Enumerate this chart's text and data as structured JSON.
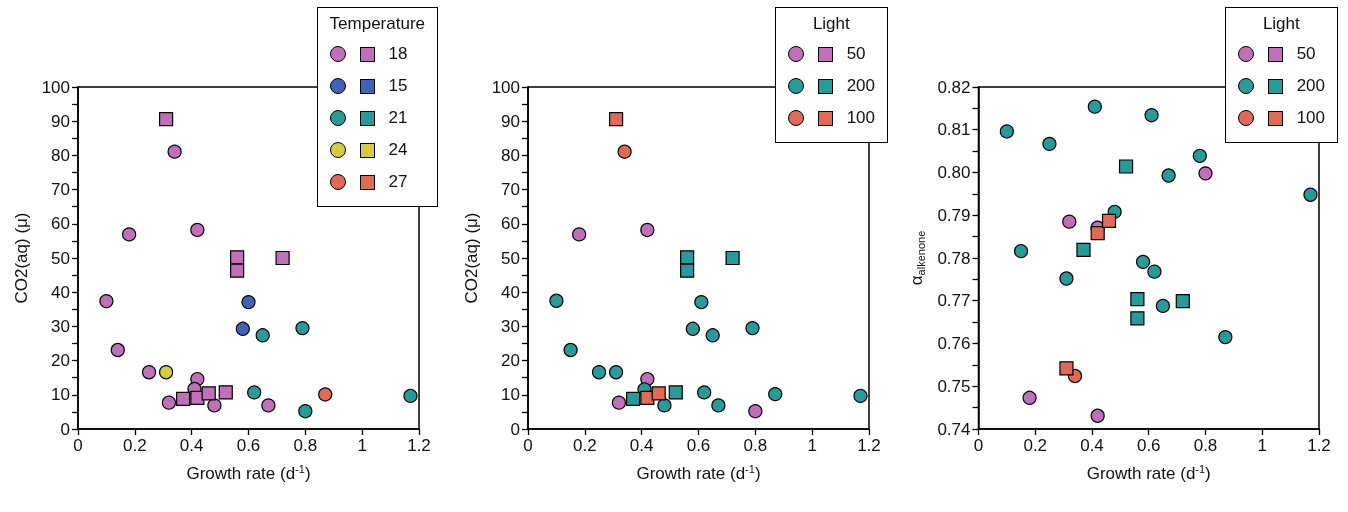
{
  "chart_data": [
    {
      "type": "scatter",
      "xlabel": "Growth rate (d$^{-1}$)",
      "ylabel": "CO2(aq) (μ)",
      "legend_title": "Temperature",
      "legend": "top right",
      "grid": false,
      "xlim": [
        0,
        1.2
      ],
      "xticks": [
        0,
        0.2,
        0.4,
        0.6,
        0.8,
        1,
        1.2
      ],
      "ylim": [
        0,
        100
      ],
      "yticks": [
        0,
        {
          "value": 5,
          "label": null
        },
        10,
        {
          "value": 15,
          "label": null
        },
        20,
        {
          "value": 25,
          "label": null
        },
        30,
        {
          "value": 35,
          "label": null
        },
        40,
        {
          "value": 45,
          "label": null
        },
        50,
        {
          "value": 55,
          "label": null
        },
        60,
        {
          "value": 65,
          "label": null
        },
        70,
        {
          "value": 75,
          "label": null
        },
        80,
        {
          "value": 85,
          "label": null
        },
        90,
        {
          "value": 95,
          "label": null
        },
        100
      ],
      "series": [
        {
          "name": "18",
          "color": "#c070b8",
          "marker": "circle",
          "x": [
            0.1,
            0.14,
            0.18,
            0.25,
            0.34,
            0.42,
            0.42,
            0.41,
            0.32,
            0.48,
            0.67
          ],
          "values": [
            37.4,
            23.1,
            56.9,
            16.6,
            81.1,
            58.2,
            14.6,
            11.7,
            7.7,
            6.9,
            6.9
          ]
        },
        {
          "name": "15",
          "color": "#4262b8",
          "marker": "circle",
          "x": [
            0.6,
            0.58
          ],
          "values": [
            37.1,
            29.3
          ]
        },
        {
          "name": "21",
          "color": "#2a9a98",
          "marker": "circle",
          "x": [
            0.65,
            0.79,
            0.62,
            0.8,
            1.17
          ],
          "values": [
            27.4,
            29.5,
            10.7,
            5.2,
            9.7
          ]
        },
        {
          "name": "24",
          "color": "#d4cc44",
          "marker": "circle",
          "x": [
            0.31
          ],
          "values": [
            16.6
          ]
        },
        {
          "name": "27",
          "color": "#e06a58",
          "marker": "circle",
          "x": [
            0.87
          ],
          "values": [
            10.1
          ]
        },
        {
          "color": "#c070b8",
          "marker": "square",
          "x": [
            0.31,
            0.56,
            0.56,
            0.72,
            0.37,
            0.42,
            0.46,
            0.52
          ],
          "values": [
            90.6,
            50.2,
            46.3,
            50.0,
            8.8,
            9.1,
            10.4,
            10.7
          ]
        }
      ]
    },
    {
      "type": "scatter",
      "xlabel": "Growth rate (d$^{-1}$)",
      "ylabel": "CO2(aq) (μ)",
      "legend_title": "Light",
      "legend": "top right",
      "grid": false,
      "xlim": [
        0,
        1.2
      ],
      "xticks": [
        0,
        0.2,
        0.4,
        0.6,
        0.8,
        1,
        1.2
      ],
      "ylim": [
        0,
        100
      ],
      "yticks": [
        0,
        {
          "value": 5,
          "label": null
        },
        10,
        {
          "value": 15,
          "label": null
        },
        20,
        {
          "value": 25,
          "label": null
        },
        30,
        {
          "value": 35,
          "label": null
        },
        40,
        {
          "value": 45,
          "label": null
        },
        50,
        {
          "value": 55,
          "label": null
        },
        60,
        {
          "value": 65,
          "label": null
        },
        70,
        {
          "value": 75,
          "label": null
        },
        80,
        {
          "value": 85,
          "label": null
        },
        90,
        {
          "value": 95,
          "label": null
        },
        100
      ],
      "series": [
        {
          "name": "50",
          "color": "#c070b8",
          "marker": "circle",
          "x": [
            0.18,
            0.42,
            0.42,
            0.32,
            0.8
          ],
          "values": [
            56.9,
            58.2,
            14.6,
            7.7,
            5.2
          ]
        },
        {
          "name": "200",
          "color": "#2a9a98",
          "marker": "circle",
          "x": [
            0.1,
            0.15,
            0.25,
            0.31,
            0.41,
            0.48,
            0.58,
            0.61,
            0.65,
            0.79,
            0.62,
            0.67,
            0.87,
            1.17
          ],
          "values": [
            37.5,
            23.1,
            16.6,
            16.6,
            11.6,
            6.9,
            29.3,
            37.1,
            27.4,
            29.5,
            10.7,
            6.9,
            10.2,
            9.7
          ]
        },
        {
          "name": "100",
          "color": "#e06a58",
          "marker": "circle",
          "x": [
            0.34
          ],
          "values": [
            81.1
          ]
        },
        {
          "color": "#2a9a98",
          "marker": "square",
          "x": [
            0.56,
            0.56,
            0.72,
            0.37,
            0.52
          ],
          "values": [
            50.2,
            46.3,
            50.0,
            8.8,
            10.7
          ]
        },
        {
          "color": "#e06a58",
          "marker": "square",
          "x": [
            0.31,
            0.42,
            0.46
          ],
          "values": [
            90.6,
            9.1,
            10.4
          ]
        }
      ]
    },
    {
      "type": "scatter",
      "xlabel": "Growth rate (d$^{-1}$)",
      "ylabel": "α$_{alkenone}$",
      "legend_title": "Light",
      "legend": "top right",
      "grid": false,
      "xlim": [
        0,
        1.2
      ],
      "xticks": [
        0,
        0.2,
        0.4,
        0.6,
        0.8,
        1,
        1.2
      ],
      "ylim": [
        0.74,
        0.82
      ],
      "yticks": [
        0.74,
        {
          "value": 0.745,
          "label": null
        },
        0.75,
        {
          "value": 0.755,
          "label": null
        },
        0.76,
        {
          "value": 0.765,
          "label": null
        },
        0.77,
        {
          "value": 0.775,
          "label": null
        },
        0.78,
        {
          "value": 0.785,
          "label": null
        },
        0.79,
        {
          "value": 0.795,
          "label": null
        },
        {
          "value": 0.8,
          "label": "0.80"
        },
        {
          "value": 0.805,
          "label": null
        },
        0.81,
        {
          "value": 0.815,
          "label": null
        },
        0.82
      ],
      "series": [
        {
          "name": "50",
          "color": "#c070b8",
          "marker": "circle",
          "x": [
            0.32,
            0.8,
            0.18,
            0.42,
            0.42
          ],
          "values": [
            0.7885,
            0.7998,
            0.7473,
            0.7431,
            0.7871
          ]
        },
        {
          "name": "200",
          "color": "#2a9a98",
          "marker": "circle",
          "x": [
            0.1,
            0.25,
            0.41,
            0.61,
            0.78,
            0.67,
            1.17,
            0.48,
            0.15,
            0.31,
            0.58,
            0.62,
            0.65,
            0.87
          ],
          "values": [
            0.8096,
            0.8067,
            0.8154,
            0.8134,
            0.8039,
            0.7993,
            0.7948,
            0.7908,
            0.7816,
            0.7752,
            0.7791,
            0.7768,
            0.7688,
            0.7615
          ]
        },
        {
          "name": "100",
          "color": "#e06a58",
          "marker": "circle",
          "x": [
            0.34
          ],
          "values": [
            0.7524
          ]
        },
        {
          "color": "#2a9a98",
          "marker": "square",
          "x": [
            0.52,
            0.37,
            0.56,
            0.56,
            0.72
          ],
          "values": [
            0.8014,
            0.7819,
            0.7704,
            0.7659,
            0.7699
          ]
        },
        {
          "color": "#e06a58",
          "marker": "square",
          "x": [
            0.31,
            0.42,
            0.46
          ],
          "values": [
            0.7542,
            0.7858,
            0.7887
          ]
        }
      ]
    }
  ]
}
